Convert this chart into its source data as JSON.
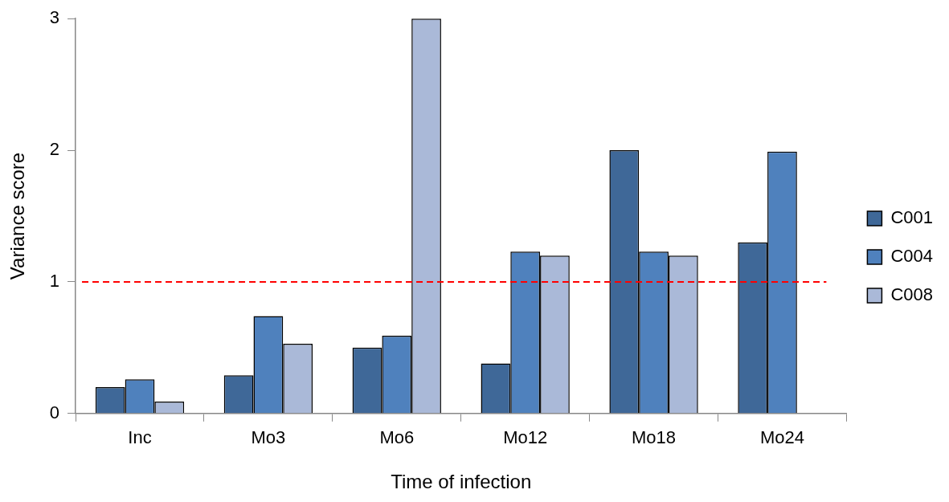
{
  "chart_data": {
    "type": "bar",
    "xlabel": "Time of infection",
    "ylabel": "Variance score",
    "categories": [
      "Inc",
      "Mo3",
      "Mo6",
      "Mo12",
      "Mo18",
      "Mo24"
    ],
    "series": [
      {
        "name": "C001",
        "color": "#3f6898",
        "values": [
          0.2,
          0.29,
          0.5,
          0.38,
          2.0,
          1.3
        ]
      },
      {
        "name": "C004",
        "color": "#4f81bd",
        "values": [
          0.26,
          0.74,
          0.59,
          1.23,
          1.23,
          1.99
        ]
      },
      {
        "name": "C008",
        "color": "#aab9d8",
        "values": [
          0.09,
          0.53,
          3.0,
          1.2,
          1.2,
          null
        ]
      }
    ],
    "ylim": [
      0,
      3
    ],
    "yticks": [
      0,
      1,
      2,
      3
    ],
    "grid": false,
    "legend": "right",
    "ref_lines": [
      {
        "axis": "y",
        "value": 1,
        "color": "#ff0000",
        "line_style": "dashed"
      }
    ]
  }
}
